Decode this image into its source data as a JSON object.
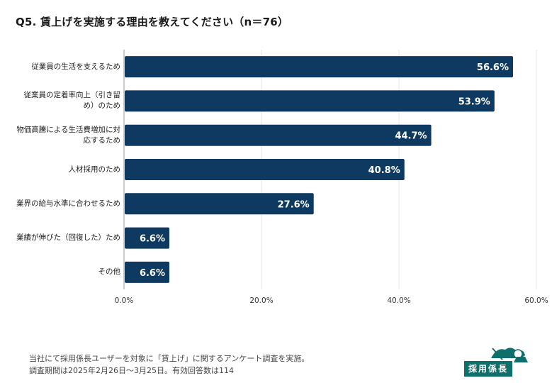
{
  "title": "Q5. 賃上げを実施する理由を教えてください（n＝76）",
  "chart_data": {
    "type": "bar",
    "orientation": "horizontal",
    "title": "Q5. 賃上げを実施する理由を教えてください（n＝76）",
    "categories": [
      "従業員の生活を支えるため",
      "従業員の定着率向上（引き留め）のため",
      "物価高騰による生活費増加に対応するため",
      "人材採用のため",
      "業界の給与水準に合わせるため",
      "業績が伸びた（回復した）ため",
      "その他"
    ],
    "values": [
      56.6,
      53.9,
      44.7,
      40.8,
      27.6,
      6.6,
      6.6
    ],
    "value_labels": [
      "56.6%",
      "53.9%",
      "44.7%",
      "40.8%",
      "27.6%",
      "6.6%",
      "6.6%"
    ],
    "xlim": [
      0,
      60
    ],
    "ticks": [
      0,
      20,
      40,
      60
    ],
    "tick_labels": [
      "0.0%",
      "20.0%",
      "40.0%",
      "60.0%"
    ],
    "xlabel": "",
    "ylabel": "",
    "bar_color": "#0e3a61",
    "grid": true
  },
  "footer": {
    "line1": "当社にて採用係長ユーザーを対象に「賃上げ」に関するアンケート調査を実施。",
    "line2": "調査期間は2025年2月26日〜3月25日。有効回答数は114"
  },
  "logo": {
    "text": "採用係長",
    "color": "#0f6f6a"
  }
}
